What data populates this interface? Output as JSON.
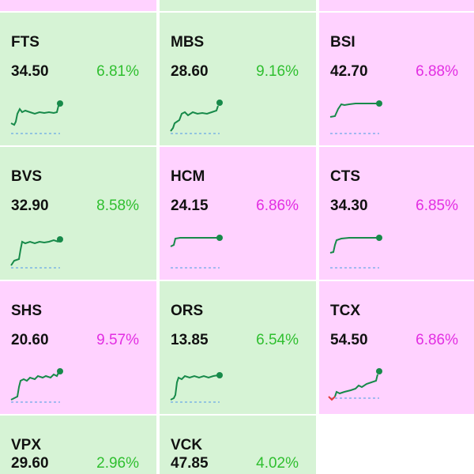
{
  "colors": {
    "green_bg": "#d6f3d5",
    "pink_bg": "#ffd2ff",
    "up_text": "#2fbf2f",
    "ceiling_text": "#e22ee2",
    "line": "#178a4a",
    "ref_line": "#6aa8e6",
    "down_line": "#e23a3a"
  },
  "tiles": [
    {
      "symbol": "FTS",
      "price": "34.50",
      "change": "6.81%",
      "tone": "green",
      "pct_style": "up"
    },
    {
      "symbol": "MBS",
      "price": "28.60",
      "change": "9.16%",
      "tone": "green",
      "pct_style": "up"
    },
    {
      "symbol": "BSI",
      "price": "42.70",
      "change": "6.88%",
      "tone": "pink",
      "pct_style": "ce"
    },
    {
      "symbol": "BVS",
      "price": "32.90",
      "change": "8.58%",
      "tone": "green",
      "pct_style": "up"
    },
    {
      "symbol": "HCM",
      "price": "24.15",
      "change": "6.86%",
      "tone": "pink",
      "pct_style": "ce"
    },
    {
      "symbol": "CTS",
      "price": "34.30",
      "change": "6.85%",
      "tone": "pink",
      "pct_style": "ce"
    },
    {
      "symbol": "SHS",
      "price": "20.60",
      "change": "9.57%",
      "tone": "pink",
      "pct_style": "ce"
    },
    {
      "symbol": "ORS",
      "price": "13.85",
      "change": "6.54%",
      "tone": "green",
      "pct_style": "up"
    },
    {
      "symbol": "TCX",
      "price": "54.50",
      "change": "6.86%",
      "tone": "pink",
      "pct_style": "ce"
    },
    {
      "symbol": "VPX",
      "price": "29.60",
      "change": "2.96%",
      "tone": "green",
      "pct_style": "up"
    },
    {
      "symbol": "VCK",
      "price": "47.85",
      "change": "4.02%",
      "tone": "green",
      "pct_style": "up"
    }
  ],
  "top_strip_tones": [
    "pink",
    "green",
    "pink"
  ]
}
